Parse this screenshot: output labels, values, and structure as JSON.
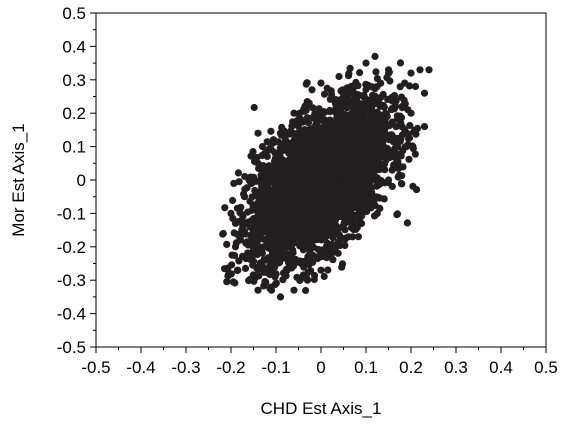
{
  "chart_data": {
    "type": "scatter",
    "title": "",
    "xlabel": "CHD Est Axis_1",
    "ylabel": "Mor Est Axis_1",
    "xlim": [
      -0.5,
      0.5
    ],
    "ylim": [
      -0.5,
      0.5
    ],
    "x_ticks": [
      "-0.5",
      "-0.4",
      "-0.3",
      "-0.2",
      "-0.1",
      "0",
      "0.1",
      "0.2",
      "0.3",
      "0.4",
      "0.5"
    ],
    "y_ticks": [
      "0.5",
      "0.4",
      "0.3",
      "0.2",
      "0.1",
      "0",
      "-0.1",
      "-0.2",
      "-0.3",
      "-0.4",
      "-0.5"
    ],
    "grid": false,
    "marker_color": "#231f20",
    "points_description_core": {
      "center": [
        0.0,
        0.0
      ],
      "x_std": 0.075,
      "y_std": 0.115,
      "correlation": 0.55,
      "count": 4000
    },
    "outlier_points": [
      [
        -0.195,
        -0.305
      ],
      [
        -0.185,
        -0.27
      ],
      [
        -0.19,
        -0.2
      ],
      [
        -0.2,
        -0.1
      ],
      [
        -0.19,
        -0.13
      ],
      [
        -0.17,
        -0.05
      ],
      [
        -0.15,
        0.0
      ],
      [
        -0.14,
        0.05
      ],
      [
        -0.13,
        0.1
      ],
      [
        -0.14,
        0.14
      ],
      [
        -0.09,
        0.14
      ],
      [
        -0.06,
        0.2
      ],
      [
        -0.02,
        0.27
      ],
      [
        0.0,
        0.29
      ],
      [
        0.04,
        0.31
      ],
      [
        0.1,
        0.35
      ],
      [
        0.12,
        0.37
      ],
      [
        0.15,
        0.33
      ],
      [
        0.2,
        0.32
      ],
      [
        0.22,
        0.33
      ],
      [
        0.24,
        0.33
      ],
      [
        0.21,
        0.28
      ],
      [
        0.23,
        0.26
      ],
      [
        0.2,
        0.2
      ],
      [
        0.23,
        0.16
      ],
      [
        0.19,
        0.1
      ],
      [
        0.16,
        0.07
      ],
      [
        0.15,
        0.0
      ],
      [
        0.1,
        -0.06
      ],
      [
        0.09,
        -0.13
      ],
      [
        0.07,
        -0.17
      ],
      [
        0.02,
        -0.22
      ],
      [
        0.0,
        -0.27
      ],
      [
        -0.03,
        -0.3
      ],
      [
        -0.06,
        -0.33
      ],
      [
        -0.09,
        -0.35
      ],
      [
        -0.11,
        -0.33
      ],
      [
        -0.14,
        -0.33
      ],
      [
        -0.11,
        0.09
      ],
      [
        0.18,
        0.22
      ]
    ]
  }
}
